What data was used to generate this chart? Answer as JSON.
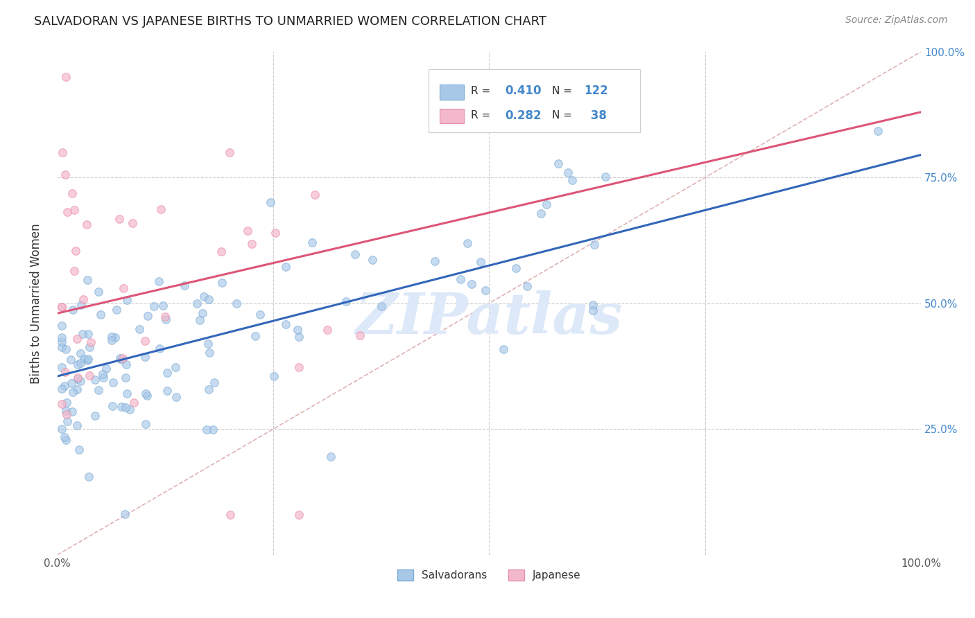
{
  "title": "SALVADORAN VS JAPANESE BIRTHS TO UNMARRIED WOMEN CORRELATION CHART",
  "source": "Source: ZipAtlas.com",
  "ylabel": "Births to Unmarried Women",
  "xlim": [
    0,
    1
  ],
  "ylim": [
    0,
    1
  ],
  "blue_color": "#a8c8e8",
  "pink_color": "#f4b8cc",
  "blue_edge": "#7aaad4",
  "pink_edge": "#e890a8",
  "trend_blue": "#3366bb",
  "trend_pink": "#dd5577",
  "diag_color": "#ddaaaa",
  "grid_color": "#dddddd",
  "watermark": "ZIPatlas",
  "watermark_color": "#dde8f8",
  "label_blue": "Salvadorans",
  "label_pink": "Japanese",
  "legend_r_blue": "0.410",
  "legend_n_blue": "122",
  "legend_r_pink": "0.282",
  "legend_n_pink": "38",
  "title_fontsize": 13,
  "source_fontsize": 10,
  "blue_trend_x0": 0.0,
  "blue_trend_y0": 0.355,
  "blue_trend_x1": 1.0,
  "blue_trend_y1": 0.795,
  "pink_trend_x0": 0.0,
  "pink_trend_y0": 0.48,
  "pink_trend_x1": 1.0,
  "pink_trend_y1": 0.88,
  "n_blue": 122,
  "n_pink": 38,
  "seed": 99
}
